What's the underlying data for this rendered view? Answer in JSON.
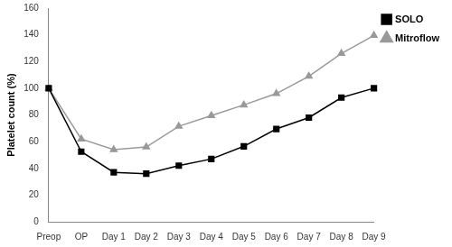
{
  "chart_data": {
    "type": "line",
    "y_label": "Platelet count (%)",
    "categories": [
      "Preop",
      "OP",
      "Day 1",
      "Day 2",
      "Day 3",
      "Day 4",
      "Day 5",
      "Day 6",
      "Day 7",
      "Day 8",
      "Day 9"
    ],
    "series": [
      {
        "name": "SOLO",
        "color": "#000000",
        "marker": "square",
        "line_style": "solid",
        "values": [
          100,
          52.5,
          37,
          36,
          42,
          47,
          56.5,
          69.5,
          78,
          93,
          100
        ]
      },
      {
        "name": "Mitroflow",
        "color": "#999999",
        "marker": "triangle",
        "line_style": "solid",
        "values": [
          100,
          62,
          54,
          56,
          71.5,
          79.5,
          87.5,
          96,
          109,
          126,
          139.5
        ]
      }
    ],
    "ylim": [
      0,
      160
    ],
    "yticks": [
      0,
      20,
      40,
      60,
      80,
      100,
      120,
      140,
      160
    ],
    "grid": false,
    "legend": "right"
  }
}
